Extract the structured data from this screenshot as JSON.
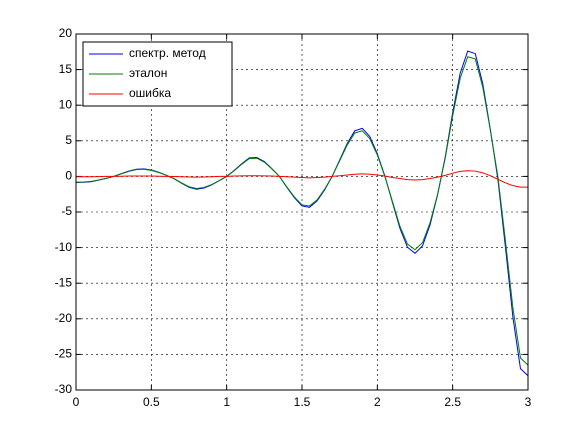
{
  "chart_data": {
    "type": "line",
    "x": [
      0,
      0.05,
      0.1,
      0.15,
      0.2,
      0.25,
      0.3,
      0.35,
      0.4,
      0.45,
      0.5,
      0.55,
      0.6,
      0.65,
      0.7,
      0.75,
      0.8,
      0.85,
      0.9,
      0.95,
      1,
      1.05,
      1.1,
      1.15,
      1.2,
      1.25,
      1.3,
      1.35,
      1.4,
      1.45,
      1.5,
      1.55,
      1.6,
      1.65,
      1.7,
      1.75,
      1.8,
      1.85,
      1.9,
      1.95,
      2,
      2.05,
      2.1,
      2.15,
      2.2,
      2.25,
      2.3,
      2.35,
      2.4,
      2.45,
      2.5,
      2.55,
      2.6,
      2.65,
      2.7,
      2.75,
      2.8,
      2.85,
      2.9,
      2.95,
      3
    ],
    "series": [
      {
        "name": "спектр. метод",
        "color": "#0000ff",
        "values": [
          -0.85,
          -0.83,
          -0.75,
          -0.53,
          -0.28,
          0,
          0.37,
          0.75,
          1.0,
          1.05,
          0.9,
          0.58,
          0.15,
          -0.32,
          -0.95,
          -1.53,
          -1.8,
          -1.63,
          -1.2,
          -0.6,
          0,
          0.85,
          1.78,
          2.6,
          2.65,
          2.08,
          1.1,
          0,
          -1.55,
          -3.0,
          -4.15,
          -4.35,
          -3.45,
          -1.9,
          0,
          2.3,
          4.6,
          6.4,
          6.75,
          5.6,
          3.2,
          0.05,
          -3.65,
          -7.3,
          -9.95,
          -10.8,
          -9.75,
          -6.8,
          -2.6,
          2.65,
          8.95,
          14.5,
          17.6,
          17.25,
          13.0,
          6.6,
          -0.4,
          -9.9,
          -19.8,
          -27.0,
          -28.0
        ]
      },
      {
        "name": "эталон",
        "color": "#008000",
        "values": [
          -0.8,
          -0.78,
          -0.7,
          -0.5,
          -0.28,
          0,
          0.35,
          0.7,
          0.95,
          1.0,
          0.85,
          0.55,
          0.15,
          -0.3,
          -0.9,
          -1.45,
          -1.7,
          -1.55,
          -1.15,
          -0.6,
          0,
          0.8,
          1.7,
          2.5,
          2.55,
          2.0,
          1.05,
          0,
          -1.5,
          -2.9,
          -4.0,
          -4.15,
          -3.3,
          -1.8,
          0,
          2.2,
          4.4,
          6.1,
          6.4,
          5.3,
          3.0,
          0,
          -3.5,
          -7.0,
          -9.5,
          -10.3,
          -9.3,
          -6.5,
          -2.5,
          2.5,
          8.5,
          13.8,
          16.8,
          16.5,
          12.5,
          6.5,
          0,
          -9,
          -18.5,
          -25.5,
          -26.5
        ]
      },
      {
        "name": "ошибка",
        "color": "#ff0000",
        "values": [
          -0.05,
          -0.05,
          -0.05,
          -0.03,
          0,
          0,
          0.02,
          0.05,
          0.05,
          0.05,
          0.05,
          0.03,
          0,
          -0.02,
          -0.05,
          -0.08,
          -0.1,
          -0.08,
          -0.05,
          0,
          0,
          0.05,
          0.08,
          0.1,
          0.1,
          0.08,
          0.05,
          0,
          -0.05,
          -0.1,
          -0.15,
          -0.2,
          -0.15,
          -0.1,
          0,
          0.1,
          0.2,
          0.3,
          0.35,
          0.3,
          0.2,
          0.05,
          -0.15,
          -0.3,
          -0.45,
          -0.5,
          -0.45,
          -0.3,
          -0.1,
          0.15,
          0.45,
          0.7,
          0.8,
          0.75,
          0.5,
          0.1,
          -0.4,
          -0.9,
          -1.3,
          -1.5,
          -1.5
        ]
      }
    ],
    "xlim": [
      0,
      3
    ],
    "xticks": [
      0,
      0.5,
      1,
      1.5,
      2,
      2.5,
      3
    ],
    "ylim": [
      -30,
      20
    ],
    "yticks": [
      -30,
      -25,
      -20,
      -15,
      -10,
      -5,
      0,
      5,
      10,
      15,
      20
    ],
    "grid": true,
    "legend": "upper-left"
  }
}
